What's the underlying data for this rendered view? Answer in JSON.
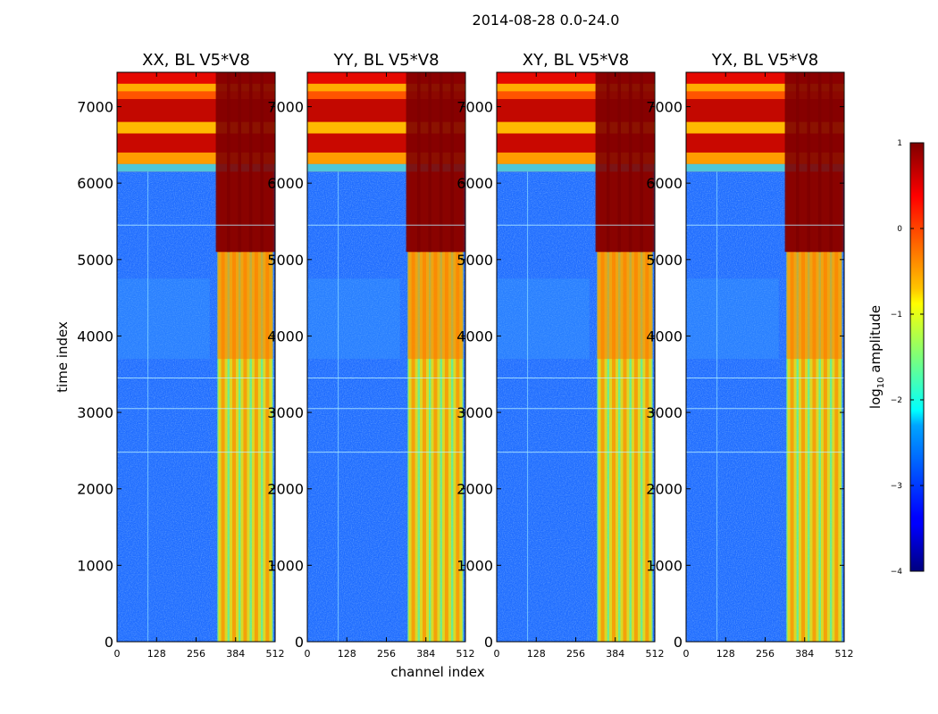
{
  "chart_data": {
    "type": "heatmap",
    "title": "2014-08-28 0.0-24.0",
    "xlabel": "channel index",
    "ylabel": "time index",
    "xlim": [
      0,
      512
    ],
    "ylim": [
      0,
      7450
    ],
    "x_ticks": [
      0,
      128,
      256,
      384,
      512
    ],
    "y_ticks": [
      0,
      1000,
      2000,
      3000,
      4000,
      5000,
      6000,
      7000
    ],
    "panels": [
      {
        "title": "XX, BL V5*V8",
        "corr": "XX"
      },
      {
        "title": "YY, BL V5*V8",
        "corr": "YY"
      },
      {
        "title": "XY, BL V5*V8",
        "corr": "XY"
      },
      {
        "title": "YX, BL V5*V8",
        "corr": "YX"
      }
    ],
    "colorbar": {
      "label_base": "log",
      "label_sub": "10",
      "label_rest": " amplitude",
      "range": [
        -4,
        1
      ],
      "ticks": [
        "1",
        "0",
        "−1",
        "−2",
        "−3",
        "−4"
      ],
      "colormap": "jet"
    },
    "signal_band_channels": [
      325,
      505
    ],
    "bright_time_band": [
      6150,
      7450
    ]
  }
}
